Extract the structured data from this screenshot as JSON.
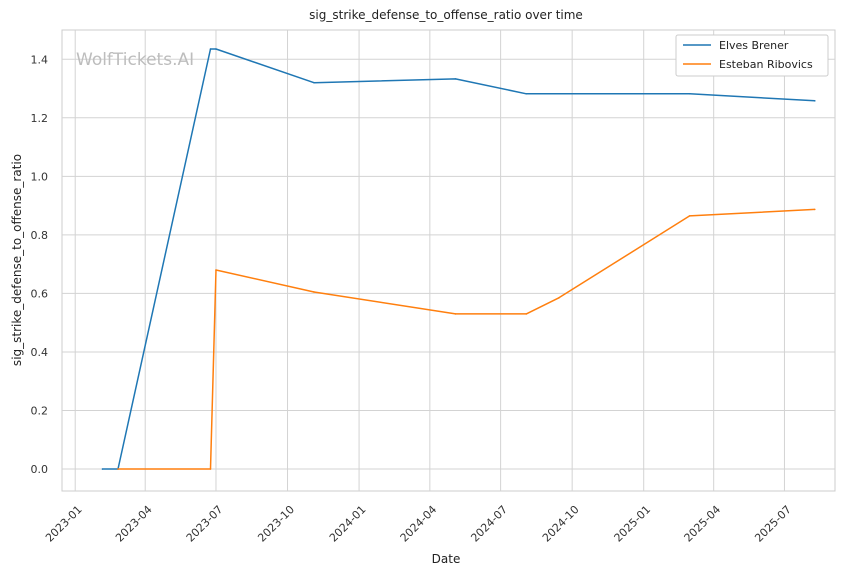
{
  "chart_data": {
    "type": "line",
    "title": "sig_strike_defense_to_offense_ratio over time",
    "xlabel": "Date",
    "ylabel": "sig_strike_defense_to_offense_ratio",
    "watermark": "WolfTickets.AI",
    "x_tick_labels": [
      "2023-01",
      "2023-04",
      "2023-07",
      "2023-10",
      "2024-01",
      "2024-04",
      "2024-07",
      "2024-10",
      "2025-01",
      "2025-04",
      "2025-07"
    ],
    "y_tick_labels": [
      "0.0",
      "0.2",
      "0.4",
      "0.6",
      "0.8",
      "1.0",
      "1.2",
      "1.4"
    ],
    "xlim": [
      "2022-12-15",
      "2025-09-04"
    ],
    "ylim": [
      -0.075,
      1.5
    ],
    "grid": true,
    "legend_position": "top-right",
    "series": [
      {
        "name": "Elves Brener",
        "color": "#1f77b4",
        "points": [
          {
            "x": "2023-02-05",
            "y": 0.0
          },
          {
            "x": "2023-02-25",
            "y": 0.0
          },
          {
            "x": "2023-06-24",
            "y": 1.435
          },
          {
            "x": "2023-07-01",
            "y": 1.435
          },
          {
            "x": "2023-11-04",
            "y": 1.32
          },
          {
            "x": "2024-05-04",
            "y": 1.333
          },
          {
            "x": "2024-08-03",
            "y": 1.282
          },
          {
            "x": "2025-03-01",
            "y": 1.282
          },
          {
            "x": "2025-08-09",
            "y": 1.258
          }
        ]
      },
      {
        "name": "Esteban Ribovics",
        "color": "#ff7f0e",
        "points": [
          {
            "x": "2023-02-25",
            "y": 0.0
          },
          {
            "x": "2023-06-24",
            "y": 0.0
          },
          {
            "x": "2023-07-01",
            "y": 0.68
          },
          {
            "x": "2023-11-04",
            "y": 0.605
          },
          {
            "x": "2024-05-04",
            "y": 0.53
          },
          {
            "x": "2024-08-03",
            "y": 0.53
          },
          {
            "x": "2024-09-14",
            "y": 0.585
          },
          {
            "x": "2025-03-01",
            "y": 0.865
          },
          {
            "x": "2025-08-09",
            "y": 0.887
          }
        ]
      }
    ]
  }
}
